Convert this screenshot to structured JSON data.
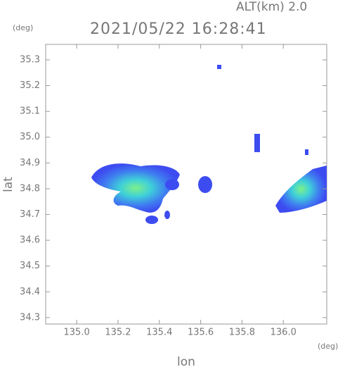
{
  "chart_data": {
    "type": "radar-map",
    "altitude_label": "ALT(km) 2.0",
    "title": "2021/05/22 16:28:41",
    "ylabel": "lat",
    "ylabel_unit": "(deg)",
    "xlabel": "lon",
    "xlabel_unit": "(deg)",
    "xlim": [
      134.85,
      136.21
    ],
    "xticks": [
      {
        "value": 135,
        "label": "135.0"
      },
      135.2,
      135.4,
      135.6,
      135.8,
      {
        "value": 136,
        "label": "136.0"
      }
    ],
    "ylim": [
      34.275,
      35.36
    ],
    "yticks": [
      34.3,
      34.4,
      34.5,
      34.6,
      34.7,
      34.8,
      34.9,
      {
        "value": 35,
        "label": "35.0"
      },
      35.1,
      35.2,
      35.3
    ]
  }
}
